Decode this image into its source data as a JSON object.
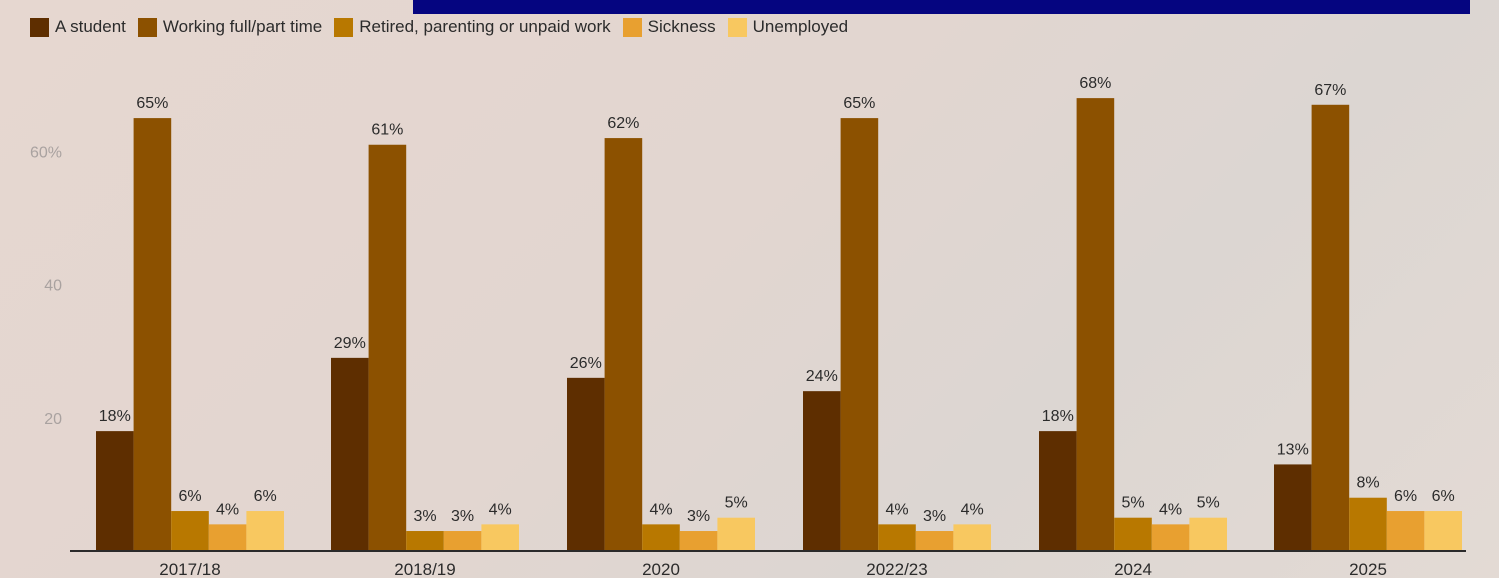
{
  "chart_data": {
    "type": "bar",
    "title": "",
    "xlabel": "",
    "ylabel": "",
    "categories": [
      "2017/18",
      "2018/19",
      "2020",
      "2022/23",
      "2024",
      "2025"
    ],
    "series": [
      {
        "name": "A student",
        "color": "#5e2e00",
        "values": [
          18,
          29,
          26,
          24,
          18,
          13
        ],
        "labels": [
          "18%",
          "29%",
          "26%",
          "24%",
          "18%",
          "13%"
        ]
      },
      {
        "name": "Working full/part time",
        "color": "#8c5100",
        "values": [
          65,
          61,
          62,
          65,
          68,
          67
        ],
        "labels": [
          "65%",
          "61%",
          "62%",
          "65%",
          "68%",
          "67%"
        ]
      },
      {
        "name": "Retired, parenting or unpaid work",
        "color": "#b87800",
        "values": [
          6,
          3,
          4,
          4,
          5,
          8
        ],
        "labels": [
          "6%",
          "3%",
          "4%",
          "4%",
          "5%",
          "8%"
        ]
      },
      {
        "name": "Sickness",
        "color": "#e8a030",
        "values": [
          4,
          3,
          3,
          3,
          4,
          6
        ],
        "labels": [
          "4%",
          "3%",
          "3%",
          "3%",
          "4%",
          "6%"
        ]
      },
      {
        "name": "Unemployed",
        "color": "#f8c860",
        "values": [
          6,
          4,
          5,
          4,
          5,
          6
        ],
        "labels": [
          "6%",
          "4%",
          "5%",
          "4%",
          "5%",
          "6%"
        ]
      }
    ],
    "y_ticks": [
      {
        "value": 20,
        "label": "20"
      },
      {
        "value": 40,
        "label": "40"
      },
      {
        "value": 60,
        "label": "60%"
      }
    ],
    "ylim": [
      0,
      70
    ],
    "grid": false,
    "legend_position": "top-left"
  },
  "banner_color": "#050580"
}
